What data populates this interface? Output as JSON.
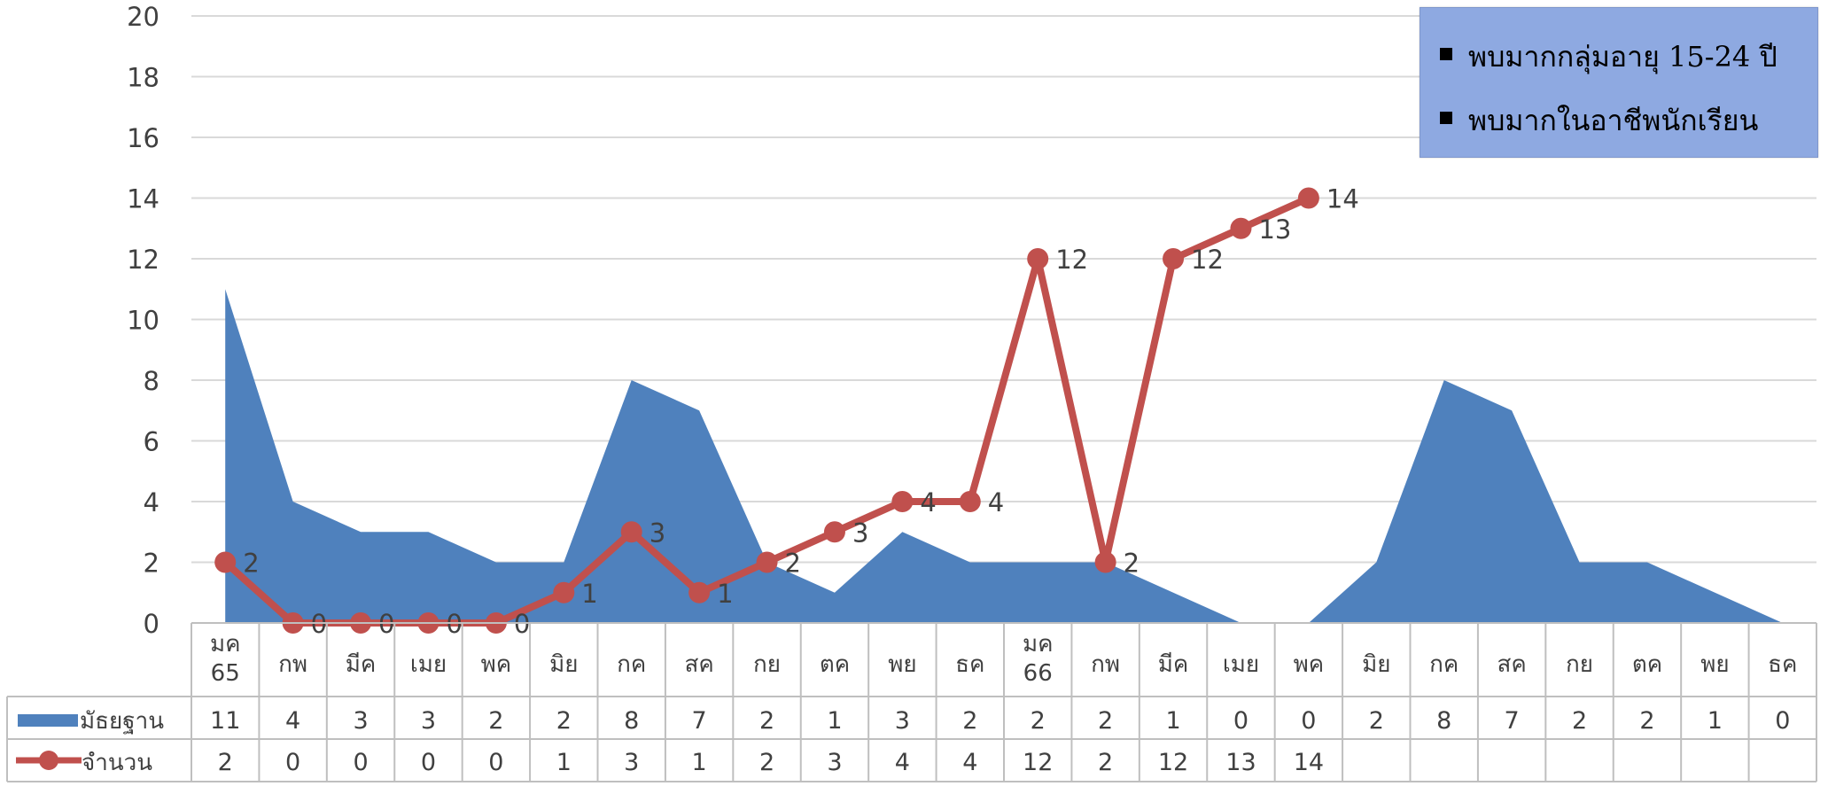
{
  "chart_data": {
    "type": "area+line",
    "categories": [
      "มค\n65",
      "กพ",
      "มีค",
      "เมย",
      "พค",
      "มิย",
      "กค",
      "สค",
      "กย",
      "ตค",
      "พย",
      "ธค",
      "มค\n66",
      "กพ",
      "มีค",
      "เมย",
      "พค",
      "มิย",
      "กค",
      "สค",
      "กย",
      "ตค",
      "พย",
      "ธค"
    ],
    "series": [
      {
        "name": "มัธยฐาน",
        "kind": "area",
        "color": "#4f81bd",
        "values": [
          11,
          4,
          3,
          3,
          2,
          2,
          8,
          7,
          2,
          1,
          3,
          2,
          2,
          2,
          1,
          0,
          0,
          2,
          8,
          7,
          2,
          2,
          1,
          0
        ]
      },
      {
        "name": "จำนวน",
        "kind": "line",
        "color": "#c0504d",
        "values": [
          2,
          0,
          0,
          0,
          0,
          1,
          3,
          1,
          2,
          3,
          4,
          4,
          12,
          2,
          12,
          13,
          14,
          null,
          null,
          null,
          null,
          null,
          null,
          null
        ]
      }
    ],
    "ylim": [
      0,
      20
    ],
    "yticks": [
      0,
      2,
      4,
      6,
      8,
      10,
      12,
      14,
      16,
      18,
      20
    ],
    "grid": true,
    "data_table": true
  },
  "notes": [
    "พบมากกลุ่มอายุ 15-24 ปี",
    "พบมากในอาชีพนักเรียน"
  ]
}
